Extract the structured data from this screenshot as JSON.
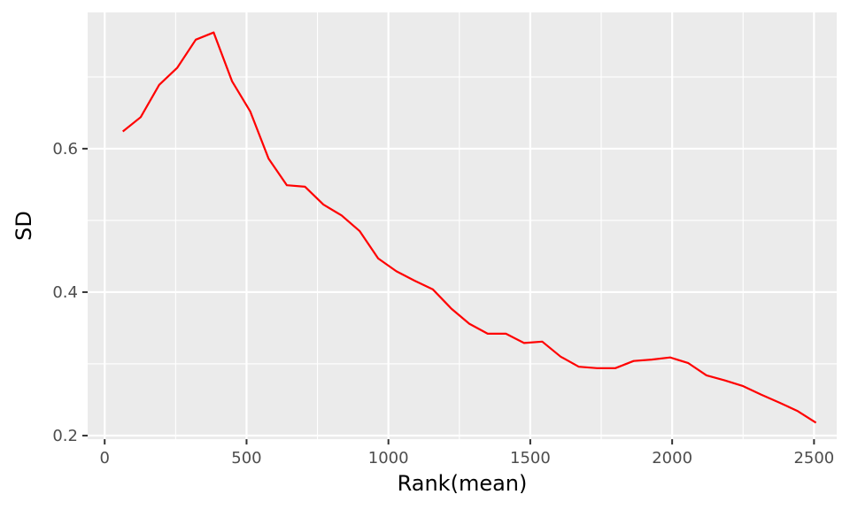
{
  "chart_data": {
    "type": "line",
    "title": "",
    "xlabel": "Rank(mean)",
    "ylabel": "SD",
    "xlim": [
      -60,
      2580
    ],
    "ylim": [
      0.195,
      0.79
    ],
    "x_ticks": [
      0,
      500,
      1000,
      1500,
      2000,
      2500
    ],
    "x_tick_labels": [
      "0",
      "500",
      "1000",
      "1500",
      "2000",
      "2500"
    ],
    "y_ticks": [
      0.2,
      0.4,
      0.6
    ],
    "y_tick_labels": [
      "0.2",
      "0.4",
      "0.6"
    ],
    "x_minor_ticks": [
      250,
      750,
      1250,
      1750,
      2250
    ],
    "y_minor_ticks": [
      0.3,
      0.5,
      0.7
    ],
    "grid": true,
    "background": "#ebebeb",
    "grid_color": "#ffffff",
    "series": [
      {
        "color": "#ff0000",
        "x": [
          64,
          127,
          192,
          256,
          321,
          384,
          449,
          513,
          578,
          642,
          706,
          771,
          835,
          899,
          964,
          1028,
          1092,
          1156,
          1222,
          1285,
          1350,
          1414,
          1478,
          1542,
          1607,
          1671,
          1735,
          1800,
          1864,
          1928,
          1993,
          2057,
          2121,
          2185,
          2250,
          2314,
          2378,
          2443,
          2507
        ],
        "values": [
          0.624,
          0.644,
          0.689,
          0.713,
          0.752,
          0.762,
          0.694,
          0.652,
          0.586,
          0.549,
          0.547,
          0.522,
          0.507,
          0.485,
          0.447,
          0.429,
          0.416,
          0.404,
          0.377,
          0.356,
          0.342,
          0.342,
          0.329,
          0.331,
          0.31,
          0.296,
          0.294,
          0.294,
          0.304,
          0.306,
          0.309,
          0.301,
          0.284,
          0.277,
          0.269,
          0.257,
          0.246,
          0.234,
          0.218
        ]
      }
    ]
  }
}
